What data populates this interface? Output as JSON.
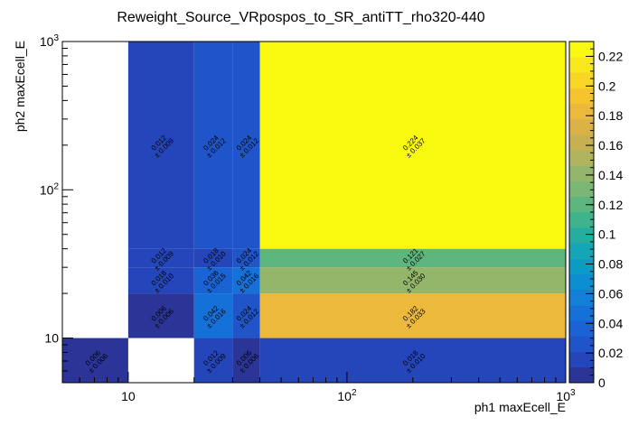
{
  "chart_data": {
    "type": "heatmap",
    "title": "Reweight_Source_VRpospos_to_SR_antiTT_rho320-440",
    "xlabel": "ph1 maxEcell_E",
    "ylabel": "ph2 maxEcell_E",
    "x_scale": "log",
    "y_scale": "log",
    "xlim": [
      5,
      1000
    ],
    "ylim": [
      5,
      1000
    ],
    "x_ticks": [
      {
        "value": 10,
        "label": "10"
      },
      {
        "value": 100,
        "label": "10²"
      },
      {
        "value": 1000,
        "label": "10³"
      }
    ],
    "y_ticks": [
      {
        "value": 10,
        "label": "10"
      },
      {
        "value": 100,
        "label": "10²"
      },
      {
        "value": 1000,
        "label": "10³"
      }
    ],
    "x_edges": [
      5,
      10,
      20,
      30,
      40,
      1000
    ],
    "y_edges": [
      5,
      10,
      20,
      30,
      40,
      1000
    ],
    "cells": [
      {
        "xi": 0,
        "yi": 0,
        "value": 0.006,
        "error": 0.006,
        "value_label": "0.006",
        "error_label": "± 0.006"
      },
      {
        "xi": 2,
        "yi": 0,
        "value": 0.012,
        "error": 0.009,
        "value_label": "0.012",
        "error_label": "± 0.009"
      },
      {
        "xi": 3,
        "yi": 0,
        "value": 0.006,
        "error": 0.006,
        "value_label": "0.006",
        "error_label": "± 0.006"
      },
      {
        "xi": 4,
        "yi": 0,
        "value": 0.018,
        "error": 0.01,
        "value_label": "0.018",
        "error_label": "± 0.010"
      },
      {
        "xi": 1,
        "yi": 1,
        "value": 0.006,
        "error": 0.006,
        "value_label": "0.006",
        "error_label": "± 0.006"
      },
      {
        "xi": 2,
        "yi": 1,
        "value": 0.042,
        "error": 0.016,
        "value_label": "0.042",
        "error_label": "± 0.016"
      },
      {
        "xi": 3,
        "yi": 1,
        "value": 0.024,
        "error": 0.012,
        "value_label": "0.024",
        "error_label": "± 0.012"
      },
      {
        "xi": 4,
        "yi": 1,
        "value": 0.182,
        "error": 0.033,
        "value_label": "0.182",
        "error_label": "± 0.033"
      },
      {
        "xi": 1,
        "yi": 2,
        "value": 0.018,
        "error": 0.01,
        "value_label": "0.018",
        "error_label": "± 0.010"
      },
      {
        "xi": 2,
        "yi": 2,
        "value": 0.036,
        "error": 0.015,
        "value_label": "0.036",
        "error_label": "± 0.015"
      },
      {
        "xi": 3,
        "yi": 2,
        "value": 0.042,
        "error": 0.016,
        "value_label": "0.042",
        "error_label": "± 0.016"
      },
      {
        "xi": 4,
        "yi": 2,
        "value": 0.145,
        "error": 0.03,
        "value_label": "0.145",
        "error_label": "± 0.030"
      },
      {
        "xi": 1,
        "yi": 3,
        "value": 0.012,
        "error": 0.009,
        "value_label": "0.012",
        "error_label": "± 0.009"
      },
      {
        "xi": 2,
        "yi": 3,
        "value": 0.018,
        "error": 0.01,
        "value_label": "0.018",
        "error_label": "± 0.010"
      },
      {
        "xi": 3,
        "yi": 3,
        "value": 0.024,
        "error": 0.012,
        "value_label": "0.024",
        "error_label": "± 0.012"
      },
      {
        "xi": 4,
        "yi": 3,
        "value": 0.121,
        "error": 0.027,
        "value_label": "0.121",
        "error_label": "± 0.027"
      },
      {
        "xi": 1,
        "yi": 4,
        "value": 0.012,
        "error": 0.009,
        "value_label": "0.012",
        "error_label": "± 0.009"
      },
      {
        "xi": 2,
        "yi": 4,
        "value": 0.024,
        "error": 0.012,
        "value_label": "0.024",
        "error_label": "± 0.012"
      },
      {
        "xi": 3,
        "yi": 4,
        "value": 0.024,
        "error": 0.012,
        "value_label": "0.024",
        "error_label": "± 0.012"
      },
      {
        "xi": 4,
        "yi": 4,
        "value": 0.224,
        "error": 0.037,
        "value_label": "0.224",
        "error_label": "± 0.037"
      }
    ],
    "z_range": [
      0,
      0.23
    ],
    "colorbar_ticks": [
      "0",
      "0.02",
      "0.04",
      "0.06",
      "0.08",
      "0.1",
      "0.12",
      "0.14",
      "0.16",
      "0.18",
      "0.2",
      "0.22"
    ],
    "colorbar_tick_values": [
      0,
      0.02,
      0.04,
      0.06,
      0.08,
      0.1,
      0.12,
      0.14,
      0.16,
      0.18,
      0.2,
      0.22
    ],
    "palette": [
      "#2a3597",
      "#2546ba",
      "#1f55c8",
      "#1a63d4",
      "#1570d8",
      "#127fd8",
      "#0d8ed3",
      "#0b9bc6",
      "#14a6b6",
      "#25ad9f",
      "#3fb48c",
      "#5cb67e",
      "#7ab674",
      "#94b66a",
      "#b0b45f",
      "#c7b052",
      "#dbb246",
      "#ecb93c",
      "#f6c42f",
      "#f8d625",
      "#f8e71d",
      "#f9f80f"
    ],
    "grid": false,
    "legend": "colorbar-right"
  }
}
